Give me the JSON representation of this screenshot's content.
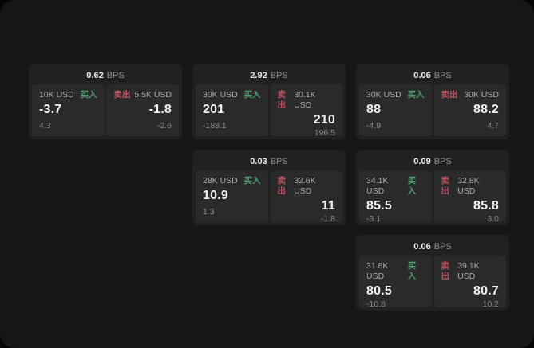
{
  "labels": {
    "buy": "买入",
    "sell": "卖出",
    "bps": "BPS"
  },
  "colors": {
    "buy_green": "#4f9e6b",
    "sell_red": "#c25362",
    "surface": "#161616",
    "card_bg": "#212121",
    "panel_bg": "#2a2a2a"
  },
  "cards": [
    {
      "bps": "0.62",
      "buy": {
        "amount": "10K USD",
        "value": "-3.7",
        "sub": "4.3"
      },
      "sell": {
        "amount": "5.5K USD",
        "value": "-1.8",
        "sub": "-2.6"
      }
    },
    {
      "bps": "2.92",
      "buy": {
        "amount": "30K USD",
        "value": "201",
        "sub": "-188.1"
      },
      "sell": {
        "amount": "30.1K USD",
        "value": "210",
        "sub": "196.5"
      }
    },
    {
      "bps": "0.06",
      "buy": {
        "amount": "30K USD",
        "value": "88",
        "sub": "-4.9"
      },
      "sell": {
        "amount": "30K USD",
        "value": "88.2",
        "sub": "4.7"
      }
    },
    {
      "bps": "0.03",
      "buy": {
        "amount": "28K USD",
        "value": "10.9",
        "sub": "1.3"
      },
      "sell": {
        "amount": "32.6K USD",
        "value": "11",
        "sub": "-1.8"
      }
    },
    {
      "bps": "0.09",
      "buy": {
        "amount": "34.1K USD",
        "value": "85.5",
        "sub": "-3.1"
      },
      "sell": {
        "amount": "32.8K USD",
        "value": "85.8",
        "sub": "3.0"
      }
    },
    {
      "bps": "0.06",
      "buy": {
        "amount": "31.8K USD",
        "value": "80.5",
        "sub": "-10.8"
      },
      "sell": {
        "amount": "39.1K USD",
        "value": "80.7",
        "sub": "10.2"
      }
    }
  ]
}
